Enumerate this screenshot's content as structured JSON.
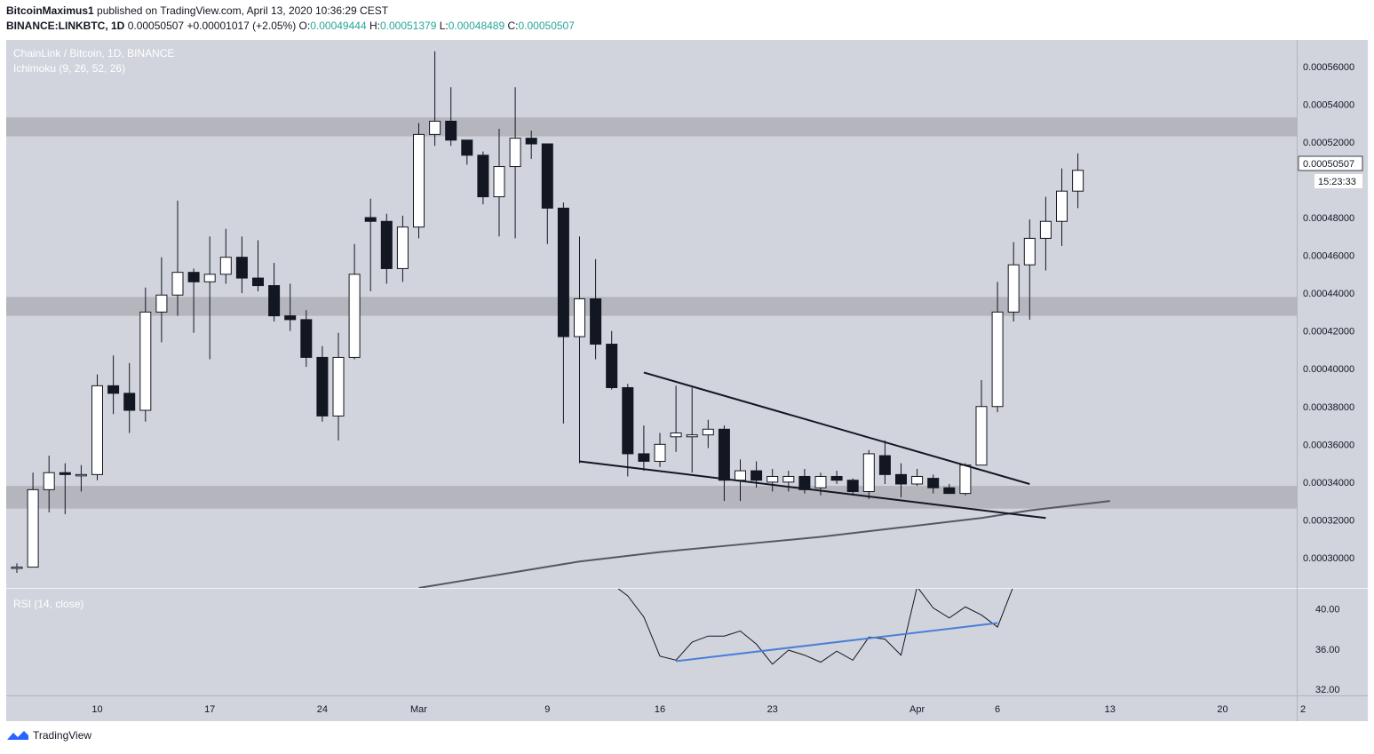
{
  "header": {
    "author": "BitcoinMaximus1",
    "published": "published on TradingView.com, April 13, 2020 10:36:29 CEST",
    "symbol": "BINANCE:LINKBTC, 1D",
    "last": "0.00050507",
    "change": "+0.00001017 (+2.05%)",
    "o_label": "O:",
    "o": "0.00049444",
    "h_label": "H:",
    "h": "0.00051379",
    "l_label": "L:",
    "l": "0.00048489",
    "c_label": "C:",
    "c": "0.00050507"
  },
  "footer": {
    "brand": "TradingView",
    "logo_icon": "tradingview-logo-icon"
  },
  "colors": {
    "background": "#d1d4dc",
    "up_fill": "#ffffff",
    "down_fill": "#131722",
    "zone": "#a9abb3",
    "rsi_trend": "#4a7fd8"
  },
  "chart_data": [
    {
      "type": "candlestick",
      "title": "ChainLink / Bitcoin, 1D, BINANCE",
      "indicator_label": "Ichimoku (9, 26, 52, 26)",
      "ylim": [
        0.000284,
        0.000574
      ],
      "yticks": [
        "0.00056000",
        "0.00054000",
        "0.00052000",
        "0.00048000",
        "0.00046000",
        "0.00044000",
        "0.00042000",
        "0.00040000",
        "0.00038000",
        "0.00036000",
        "0.00034000",
        "0.00032000",
        "0.00030000"
      ],
      "last_price_label": "0.00050507",
      "countdown": "15:23:33",
      "xticks": [
        {
          "label": "10",
          "index": 5
        },
        {
          "label": "17",
          "index": 12
        },
        {
          "label": "24",
          "index": 19
        },
        {
          "label": "Mar",
          "index": 25
        },
        {
          "label": "9",
          "index": 33
        },
        {
          "label": "16",
          "index": 40
        },
        {
          "label": "23",
          "index": 47
        },
        {
          "label": "Apr",
          "index": 56
        },
        {
          "label": "6",
          "index": 61
        },
        {
          "label": "13",
          "index": 68
        },
        {
          "label": "20",
          "index": 75
        },
        {
          "label": "2",
          "index": 80
        }
      ],
      "candles": [
        [
          0.000295,
          0.000297,
          0.000292,
          0.000295
        ],
        [
          0.000295,
          0.000345,
          0.000295,
          0.000336
        ],
        [
          0.000336,
          0.000354,
          0.000324,
          0.000345
        ],
        [
          0.000345,
          0.00035,
          0.000323,
          0.000344
        ],
        [
          0.000344,
          0.000349,
          0.000335,
          0.000344
        ],
        [
          0.000344,
          0.000397,
          0.000341,
          0.000391
        ],
        [
          0.000391,
          0.000407,
          0.000376,
          0.000387
        ],
        [
          0.000387,
          0.000403,
          0.000366,
          0.000378
        ],
        [
          0.000378,
          0.000443,
          0.000372,
          0.00043
        ],
        [
          0.00043,
          0.000459,
          0.000414,
          0.000439
        ],
        [
          0.000439,
          0.000489,
          0.000428,
          0.000451
        ],
        [
          0.000451,
          0.000453,
          0.000419,
          0.000446
        ],
        [
          0.000446,
          0.00047,
          0.000405,
          0.00045
        ],
        [
          0.00045,
          0.000474,
          0.000445,
          0.000459
        ],
        [
          0.000459,
          0.00047,
          0.00044,
          0.000448
        ],
        [
          0.000448,
          0.000468,
          0.000441,
          0.000444
        ],
        [
          0.000444,
          0.000456,
          0.000425,
          0.000428
        ],
        [
          0.000428,
          0.000445,
          0.00042,
          0.000426
        ],
        [
          0.000426,
          0.000431,
          0.000401,
          0.000406
        ],
        [
          0.000406,
          0.000412,
          0.000372,
          0.000375
        ],
        [
          0.000375,
          0.000419,
          0.000362,
          0.000406
        ],
        [
          0.000406,
          0.000466,
          0.000405,
          0.00045
        ],
        [
          0.00048,
          0.00049,
          0.000441,
          0.000478
        ],
        [
          0.000478,
          0.000482,
          0.000445,
          0.000453
        ],
        [
          0.000453,
          0.000481,
          0.000446,
          0.000475
        ],
        [
          0.000475,
          0.00053,
          0.000469,
          0.000524
        ],
        [
          0.000524,
          0.000568,
          0.000518,
          0.000531
        ],
        [
          0.000531,
          0.000549,
          0.000518,
          0.000521
        ],
        [
          0.000521,
          0.00052,
          0.000508,
          0.000513
        ],
        [
          0.000513,
          0.000515,
          0.000487,
          0.000491
        ],
        [
          0.000491,
          0.000527,
          0.00047,
          0.000507
        ],
        [
          0.000507,
          0.000549,
          0.000469,
          0.000522
        ],
        [
          0.000522,
          0.000526,
          0.000511,
          0.000519
        ],
        [
          0.000519,
          0.000518,
          0.000466,
          0.000485
        ],
        [
          0.000485,
          0.000488,
          0.000371,
          0.000417
        ],
        [
          0.000417,
          0.00047,
          0.00035,
          0.000437
        ],
        [
          0.000437,
          0.000458,
          0.000405,
          0.000413
        ],
        [
          0.000413,
          0.00042,
          0.000389,
          0.00039
        ],
        [
          0.00039,
          0.000392,
          0.000343,
          0.000355
        ],
        [
          0.000355,
          0.00037,
          0.000346,
          0.000351
        ],
        [
          0.000351,
          0.000366,
          0.000348,
          0.00036
        ],
        [
          0.000364,
          0.000391,
          0.000356,
          0.000366
        ],
        [
          0.000364,
          0.00039,
          0.000345,
          0.000365
        ],
        [
          0.000365,
          0.000373,
          0.000358,
          0.000368
        ],
        [
          0.000368,
          0.00037,
          0.00033,
          0.000341
        ],
        [
          0.000341,
          0.000352,
          0.00033,
          0.000346
        ],
        [
          0.000346,
          0.000351,
          0.000337,
          0.000341
        ],
        [
          0.00034,
          0.000347,
          0.000335,
          0.000343
        ],
        [
          0.00034,
          0.000346,
          0.000335,
          0.000343
        ],
        [
          0.000343,
          0.000347,
          0.000334,
          0.000336
        ],
        [
          0.000337,
          0.000345,
          0.000333,
          0.000343
        ],
        [
          0.000343,
          0.000346,
          0.000339,
          0.000341
        ],
        [
          0.000341,
          0.000342,
          0.000333,
          0.000335
        ],
        [
          0.000335,
          0.000357,
          0.000331,
          0.000355
        ],
        [
          0.000354,
          0.000362,
          0.000339,
          0.000344
        ],
        [
          0.000344,
          0.00035,
          0.000332,
          0.000339
        ],
        [
          0.000339,
          0.000347,
          0.000338,
          0.000343
        ],
        [
          0.000342,
          0.000344,
          0.000334,
          0.000337
        ],
        [
          0.000337,
          0.000339,
          0.000334,
          0.000334
        ],
        [
          0.000334,
          0.00035,
          0.000333,
          0.000349
        ],
        [
          0.000349,
          0.000394,
          0.000349,
          0.00038
        ],
        [
          0.00038,
          0.000446,
          0.000377,
          0.00043
        ],
        [
          0.00043,
          0.000467,
          0.000425,
          0.000455
        ],
        [
          0.000455,
          0.000479,
          0.000426,
          0.000469
        ],
        [
          0.000469,
          0.000491,
          0.000452,
          0.000478
        ],
        [
          0.000478,
          0.000506,
          0.000465,
          0.000494
        ],
        [
          0.000494,
          0.000514,
          0.000485,
          0.000505
        ]
      ],
      "zones": [
        [
          0.000523,
          0.000533
        ],
        [
          0.000428,
          0.000438
        ],
        [
          0.000326,
          0.000338
        ]
      ],
      "trendlines": [
        {
          "name": "wedge-upper",
          "from": [
            39,
            0.000398
          ],
          "to": [
            63,
            0.000339
          ]
        },
        {
          "name": "wedge-lower",
          "from": [
            35,
            0.000351
          ],
          "to": [
            64,
            0.000321
          ]
        }
      ],
      "cloud_line": [
        [
          25,
          0.000284
        ],
        [
          30,
          0.000291
        ],
        [
          35,
          0.000298
        ],
        [
          40,
          0.000303
        ],
        [
          45,
          0.000307
        ],
        [
          50,
          0.000311
        ],
        [
          55,
          0.000316
        ],
        [
          60,
          0.000321
        ],
        [
          63,
          0.000325
        ],
        [
          68,
          0.00033
        ]
      ]
    },
    {
      "type": "line",
      "title": "RSI (14, close)",
      "ylim": [
        31.4,
        42.0
      ],
      "yticks": [
        "40.00",
        "36.00",
        "32.00"
      ],
      "series": [
        {
          "points": [
            [
              37,
              42.5
            ],
            [
              38,
              41.3
            ],
            [
              39,
              39.2
            ],
            [
              40,
              35.3
            ],
            [
              41,
              34.9
            ],
            [
              42,
              36.7
            ],
            [
              43,
              37.3
            ],
            [
              44,
              37.3
            ],
            [
              45,
              37.8
            ],
            [
              46,
              36.5
            ],
            [
              47,
              34.5
            ],
            [
              48,
              35.9
            ],
            [
              49,
              35.4
            ],
            [
              50,
              34.7
            ],
            [
              51,
              35.8
            ],
            [
              52,
              34.9
            ],
            [
              53,
              37.2
            ],
            [
              54,
              37.0
            ],
            [
              55,
              35.4
            ],
            [
              56,
              42.2
            ],
            [
              57,
              40.1
            ],
            [
              58,
              39.1
            ],
            [
              59,
              40.2
            ],
            [
              60,
              39.4
            ],
            [
              61,
              38.2
            ],
            [
              62,
              42.3
            ]
          ]
        }
      ],
      "trendline": {
        "from": [
          41,
          34.8
        ],
        "to": [
          61,
          38.6
        ]
      }
    }
  ]
}
